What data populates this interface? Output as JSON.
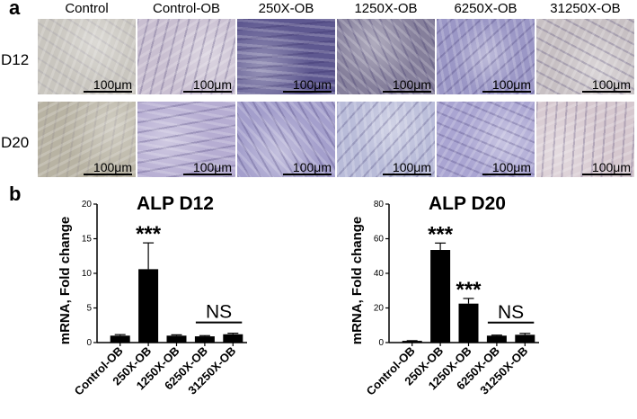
{
  "panel_a": {
    "letter": "a",
    "columns": [
      "Control",
      "Control-OB",
      "250X-OB",
      "1250X-OB",
      "6250X-OB",
      "31250X-OB"
    ],
    "rows": [
      "D12",
      "D20"
    ],
    "scale_label": "100μm",
    "tints": [
      [
        "#c9c6bf",
        "#c9bfd1",
        "#5e5890",
        "#857f9b",
        "#9b97c6",
        "#c7c0c3"
      ],
      [
        "#b8b3a3",
        "#b6add2",
        "#a49fcc",
        "#b9bcd9",
        "#aaa5d2",
        "#d6c8cf"
      ]
    ]
  },
  "panel_b": {
    "letter": "b"
  },
  "chart_data": [
    {
      "type": "bar",
      "title": "ALP D12",
      "ylabel": "mRNA, Fold change",
      "xlabel": "",
      "categories": [
        "Control-OB",
        "250X-OB",
        "1250X-OB",
        "6250X-OB",
        "31250X-OB"
      ],
      "values": [
        1.0,
        10.6,
        1.0,
        0.9,
        1.2
      ],
      "errors": [
        0.15,
        3.8,
        0.12,
        0.1,
        0.15
      ],
      "ylim": [
        0,
        20
      ],
      "yticks": [
        "0",
        "5",
        "10",
        "15",
        "20"
      ],
      "annotations": [
        {
          "text": "***",
          "category": "250X-OB"
        },
        {
          "text": "NS",
          "from": "6250X-OB",
          "to": "31250X-OB"
        }
      ]
    },
    {
      "type": "bar",
      "title": "ALP D20",
      "ylabel": "mRNA, Fold change",
      "xlabel": "",
      "categories": [
        "Control-OB",
        "250X-OB",
        "1250X-OB",
        "6250X-OB",
        "31250X-OB"
      ],
      "values": [
        1.0,
        53.5,
        22.5,
        4.0,
        4.5
      ],
      "errors": [
        0.1,
        4.0,
        3.0,
        0.3,
        0.8
      ],
      "ylim": [
        0,
        80
      ],
      "yticks": [
        "0",
        "20",
        "40",
        "60",
        "80"
      ],
      "annotations": [
        {
          "text": "***",
          "category": "250X-OB"
        },
        {
          "text": "***",
          "category": "1250X-OB"
        },
        {
          "text": "NS",
          "from": "6250X-OB",
          "to": "31250X-OB"
        }
      ]
    }
  ]
}
